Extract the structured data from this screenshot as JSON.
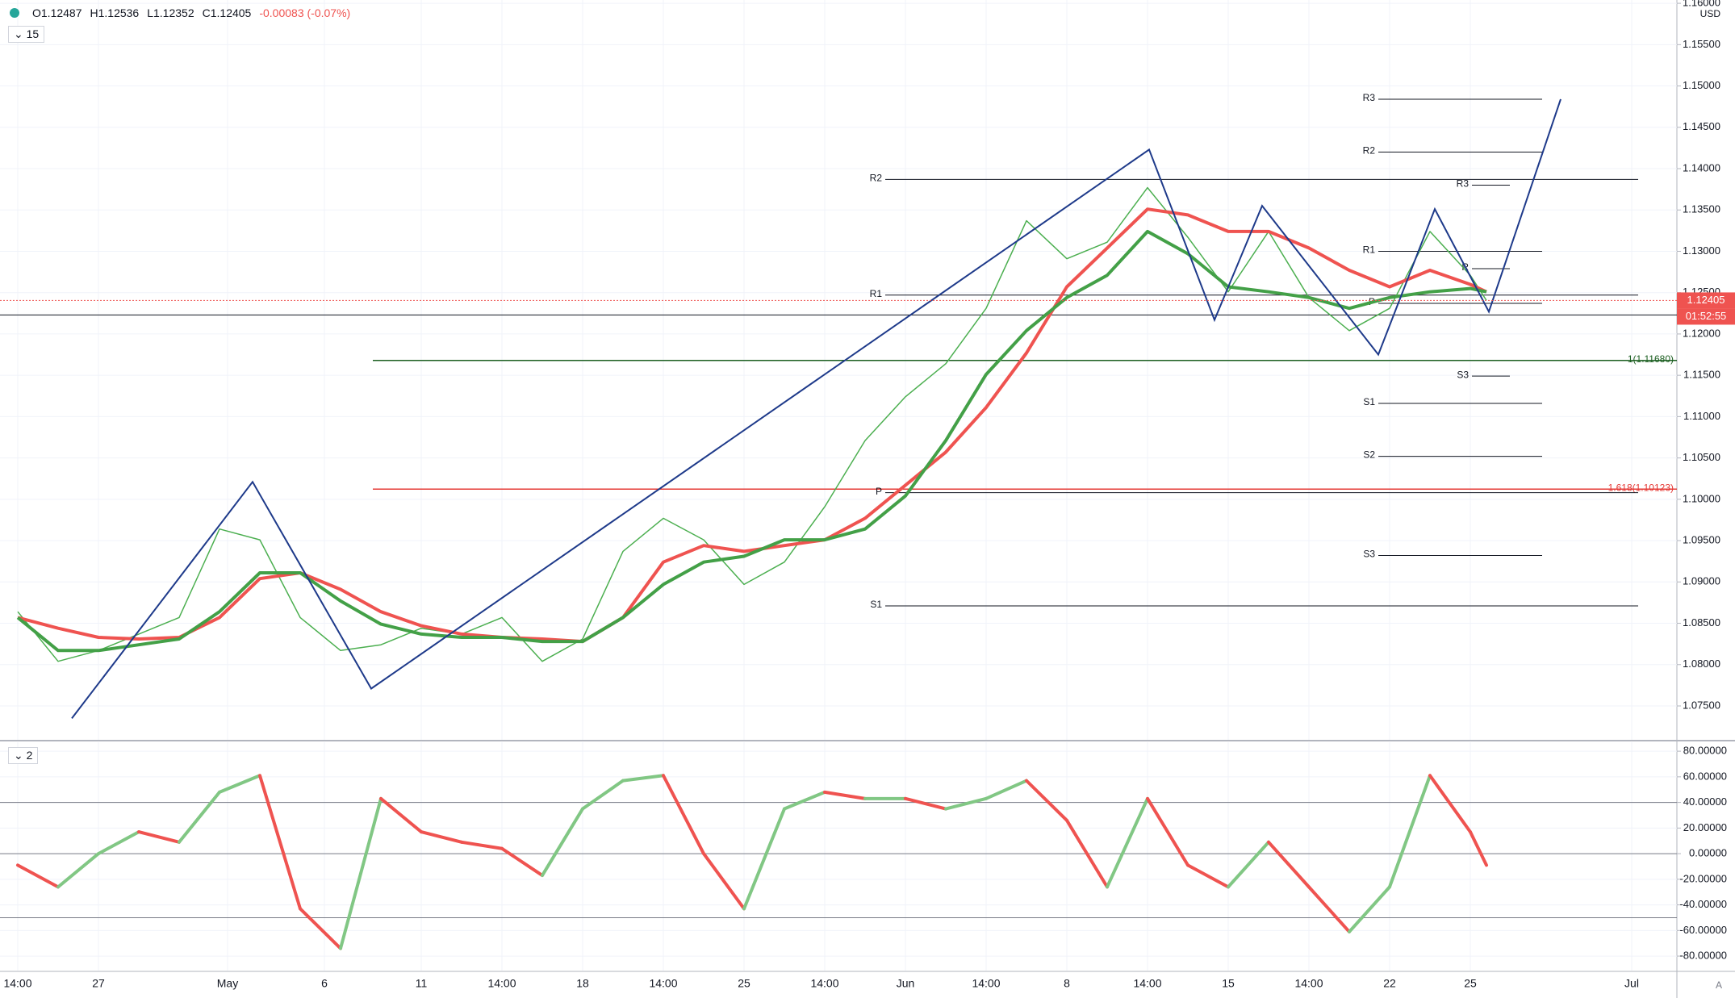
{
  "header": {
    "open": "O1.12487",
    "high": "H1.12536",
    "low": "L1.12352",
    "close": "C1.12405",
    "change": "-0.00083 (-0.07%)"
  },
  "chart_data": [
    {
      "type": "line",
      "interval": "15",
      "currency": "USD",
      "last_price": 1.12405,
      "countdown": "01:52:55",
      "xlim": [
        -0.22,
        20.56
      ],
      "ylim": [
        1.0709,
        1.1604
      ],
      "xticks": [
        {
          "value": 0,
          "label": "14:00"
        },
        {
          "value": 1,
          "label": "27"
        },
        {
          "value": 2.6,
          "label": "May"
        },
        {
          "value": 3.8,
          "label": "6"
        },
        {
          "value": 5,
          "label": "11"
        },
        {
          "value": 6,
          "label": "14:00"
        },
        {
          "value": 7,
          "label": "18"
        },
        {
          "value": 8,
          "label": "14:00"
        },
        {
          "value": 9,
          "label": "25"
        },
        {
          "value": 10,
          "label": "14:00"
        },
        {
          "value": 11,
          "label": "Jun"
        },
        {
          "value": 12,
          "label": "14:00"
        },
        {
          "value": 13,
          "label": "8"
        },
        {
          "value": 14,
          "label": "14:00"
        },
        {
          "value": 15,
          "label": "15"
        },
        {
          "value": 16,
          "label": "14:00"
        },
        {
          "value": 17,
          "label": "22"
        },
        {
          "value": 18,
          "label": "25"
        },
        {
          "value": 20,
          "label": "Jul"
        }
      ],
      "yticks": [
        {
          "value": 1.075,
          "label": "1.07500"
        },
        {
          "value": 1.08,
          "label": "1.08000"
        },
        {
          "value": 1.085,
          "label": "1.08500"
        },
        {
          "value": 1.09,
          "label": "1.09000"
        },
        {
          "value": 1.095,
          "label": "1.09500"
        },
        {
          "value": 1.1,
          "label": "1.10000"
        },
        {
          "value": 1.105,
          "label": "1.10500"
        },
        {
          "value": 1.11,
          "label": "1.11000"
        },
        {
          "value": 1.115,
          "label": "1.11500"
        },
        {
          "value": 1.12,
          "label": "1.12000"
        },
        {
          "value": 1.125,
          "label": "1.12500"
        },
        {
          "value": 1.13,
          "label": "1.13000"
        },
        {
          "value": 1.135,
          "label": "1.13500"
        },
        {
          "value": 1.14,
          "label": "1.14000"
        },
        {
          "value": 1.145,
          "label": "1.14500"
        },
        {
          "value": 1.15,
          "label": "1.15000"
        },
        {
          "value": 1.155,
          "label": "1.15500"
        },
        {
          "value": 1.16,
          "label": "1.16000"
        }
      ],
      "grid": true,
      "x": [
        0,
        0.5,
        1,
        1.5,
        2,
        2.5,
        3,
        3.5,
        4,
        4.5,
        5,
        5.5,
        6,
        6.5,
        7,
        7.5,
        8,
        8.5,
        9,
        9.5,
        10,
        10.5,
        11,
        11.5,
        12,
        12.5,
        13,
        13.5,
        14,
        14.5,
        15,
        15.5,
        16,
        16.5,
        17,
        17.5,
        18,
        18.2
      ],
      "series": [
        {
          "color": "#4caf50",
          "width": 1.5,
          "values": [
            1.0864,
            1.0804,
            1.0817,
            1.0837,
            1.0857,
            1.0964,
            1.0951,
            1.0857,
            1.0817,
            1.0824,
            1.0844,
            1.0837,
            1.0857,
            1.0804,
            1.0831,
            1.0937,
            1.0977,
            1.0951,
            1.0897,
            1.0924,
            1.0991,
            1.1071,
            1.1124,
            1.1164,
            1.1231,
            1.1337,
            1.1291,
            1.1311,
            1.1377,
            1.1317,
            1.1251,
            1.1324,
            1.1244,
            1.1204,
            1.1231,
            1.1324,
            1.1271,
            1.12405
          ]
        },
        {
          "color": "#ef5350",
          "width": 4,
          "values": [
            1.0857,
            1.0844,
            1.0833,
            1.0831,
            1.0833,
            1.0857,
            1.0904,
            1.0911,
            1.0891,
            1.0864,
            1.0847,
            1.0837,
            1.0833,
            1.0831,
            1.0828,
            1.0857,
            1.0924,
            1.0944,
            1.0937,
            1.0944,
            1.0951,
            1.0977,
            1.1017,
            1.1057,
            1.1111,
            1.1177,
            1.1257,
            1.1304,
            1.1351,
            1.1344,
            1.1324,
            1.1324,
            1.1304,
            1.1277,
            1.1257,
            1.1277,
            1.126,
            1.1251
          ]
        },
        {
          "color": "#43a047",
          "width": 4,
          "values": [
            1.0857,
            1.0817,
            1.0817,
            1.0824,
            1.0831,
            1.0864,
            1.0911,
            1.0911,
            1.0877,
            1.0849,
            1.0837,
            1.0833,
            1.0833,
            1.0828,
            1.0828,
            1.0857,
            1.0897,
            1.0924,
            1.0931,
            1.0951,
            1.0951,
            1.0964,
            1.1004,
            1.1071,
            1.1151,
            1.1204,
            1.1244,
            1.1271,
            1.1324,
            1.1297,
            1.1257,
            1.1251,
            1.1244,
            1.1231,
            1.1244,
            1.1251,
            1.1255,
            1.1251
          ]
        }
      ],
      "zigzag": {
        "color": "#1e3a8a",
        "x": [
          0.67,
          2.91,
          4.38,
          14.02,
          14.83,
          15.42,
          16.86,
          17.56,
          18.23,
          19.12
        ],
        "values": [
          1.0735,
          1.1021,
          1.0771,
          1.1423,
          1.1217,
          1.1355,
          1.1175,
          1.1351,
          1.1227,
          1.1484
        ]
      },
      "hline": 1.1223,
      "pivots": [
        {
          "label": "R2",
          "value": 1.1387,
          "x": [
            10.75,
            20.08
          ]
        },
        {
          "label": "R1",
          "value": 1.1247,
          "x": [
            10.75,
            20.08
          ]
        },
        {
          "label": "P",
          "value": 1.1008,
          "x": [
            10.75,
            20.08
          ]
        },
        {
          "label": "S1",
          "value": 1.0871,
          "x": [
            10.75,
            20.08
          ]
        },
        {
          "label": "R3",
          "value": 1.1484,
          "x": [
            16.86,
            18.89
          ]
        },
        {
          "label": "R2",
          "value": 1.142,
          "x": [
            16.86,
            18.89
          ]
        },
        {
          "label": "R1",
          "value": 1.13,
          "x": [
            16.86,
            18.89
          ]
        },
        {
          "label": "P",
          "value": 1.1237,
          "x": [
            16.86,
            18.89
          ]
        },
        {
          "label": "S1",
          "value": 1.1116,
          "x": [
            16.86,
            18.89
          ]
        },
        {
          "label": "S2",
          "value": 1.1052,
          "x": [
            16.86,
            18.89
          ]
        },
        {
          "label": "S3",
          "value": 1.0932,
          "x": [
            16.86,
            18.89
          ]
        },
        {
          "label": "R3",
          "value": 1.138,
          "x": [
            18.02,
            18.49
          ]
        },
        {
          "label": "R",
          "value": 1.1279,
          "x": [
            18.02,
            18.49
          ]
        },
        {
          "label": "S3",
          "value": 1.1149,
          "x": [
            18.02,
            18.49
          ]
        }
      ],
      "fib": [
        {
          "label": "1(1.11680)",
          "value": 1.1168,
          "color": "#1b5e20",
          "x": [
            4.4,
            20.56
          ]
        },
        {
          "label": "1.618(1.10123)",
          "value": 1.10123,
          "color": "#e53935",
          "x": [
            4.4,
            20.56
          ]
        }
      ]
    },
    {
      "type": "oscillator",
      "legend": "2",
      "ylim": [
        -91.3,
        87
      ],
      "yticks": [
        {
          "value": 80,
          "label": "80.00000"
        },
        {
          "value": 60,
          "label": "60.00000"
        },
        {
          "value": 40,
          "label": "40.00000"
        },
        {
          "value": 20,
          "label": "20.00000"
        },
        {
          "value": 0,
          "label": "0.00000"
        },
        {
          "value": -20,
          "label": "-20.00000"
        },
        {
          "value": -40,
          "label": "-40.00000"
        },
        {
          "value": -60,
          "label": "-60.00000"
        },
        {
          "value": -80,
          "label": "-80.00000"
        }
      ],
      "levels": [
        40,
        0,
        -50
      ],
      "up_color": "#81c784",
      "down_color": "#ef5350",
      "values": [
        -9,
        -26,
        0,
        17,
        9,
        48,
        61,
        -43,
        -74,
        43,
        17,
        9,
        4,
        -17,
        35,
        57,
        61,
        0,
        -43,
        35,
        48,
        43,
        43,
        35,
        43,
        57,
        26,
        -26,
        43,
        -9,
        -26,
        9,
        -26,
        -61,
        -26,
        61,
        17,
        -9
      ]
    }
  ]
}
